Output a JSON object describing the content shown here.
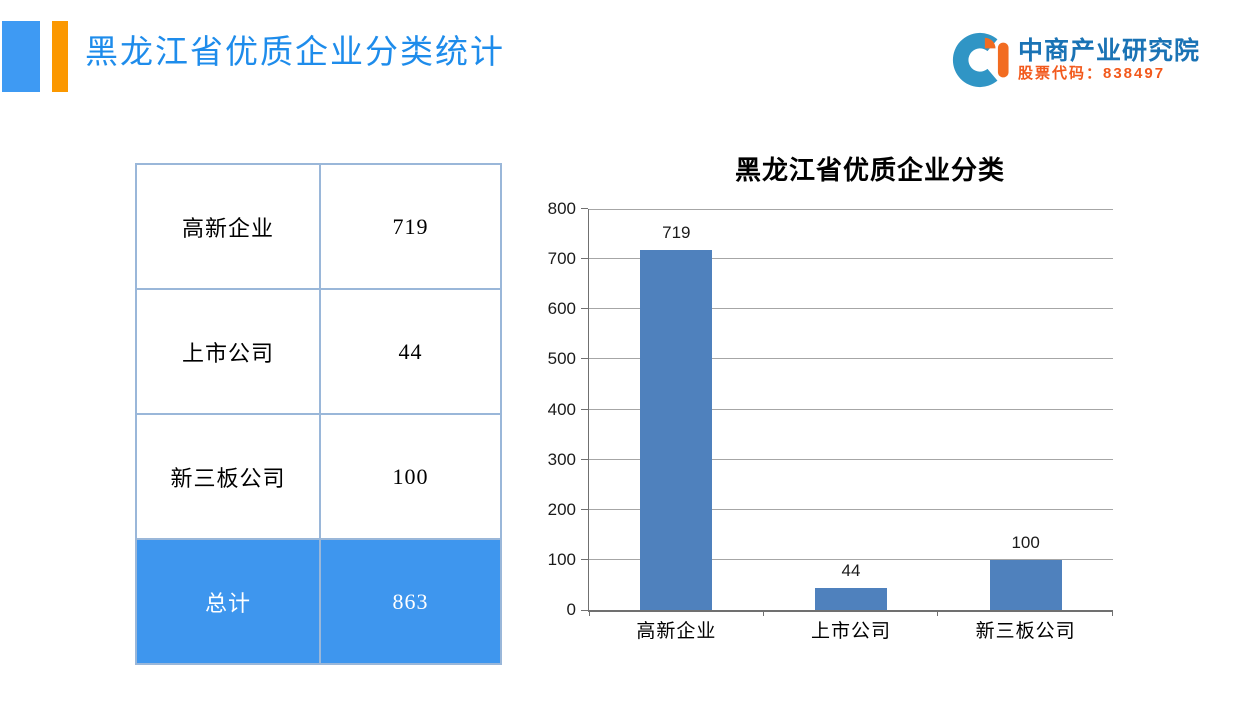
{
  "slide": {
    "title": "黑龙江省优质企业分类统计",
    "title_color": "#1e8ceb",
    "accent_blue": "#3e9af3",
    "accent_orange": "#fb9800"
  },
  "logo": {
    "name": "中商产业研究院",
    "stock_code": "股票代码：838497",
    "name_color": "#1a73b5",
    "code_color": "#f2591c",
    "icon_blue": "#3095c5",
    "icon_orange": "#f26c21"
  },
  "table": {
    "border_color": "#9ab7d9",
    "highlight_bg": "#3e96ee",
    "highlight_text": "#ffffff",
    "rows": [
      {
        "label": "高新企业",
        "value": "719",
        "highlight": false
      },
      {
        "label": "上市公司",
        "value": "44",
        "highlight": false
      },
      {
        "label": "新三板公司",
        "value": "100",
        "highlight": false
      },
      {
        "label": "总计",
        "value": "863",
        "highlight": true
      }
    ]
  },
  "chart_data": {
    "type": "bar",
    "title": "黑龙江省优质企业分类",
    "categories": [
      "高新企业",
      "上市公司",
      "新三板公司"
    ],
    "values": [
      719,
      44,
      100
    ],
    "data_labels": [
      "719",
      "44",
      "100"
    ],
    "xlabel": "",
    "ylabel": "",
    "ylim": [
      0,
      800
    ],
    "ytick_step": 100,
    "grid": true,
    "legend": false,
    "bar_color": "#4f81bd",
    "gridline_color": "#a6a6a6",
    "axis_color": "#707070"
  }
}
